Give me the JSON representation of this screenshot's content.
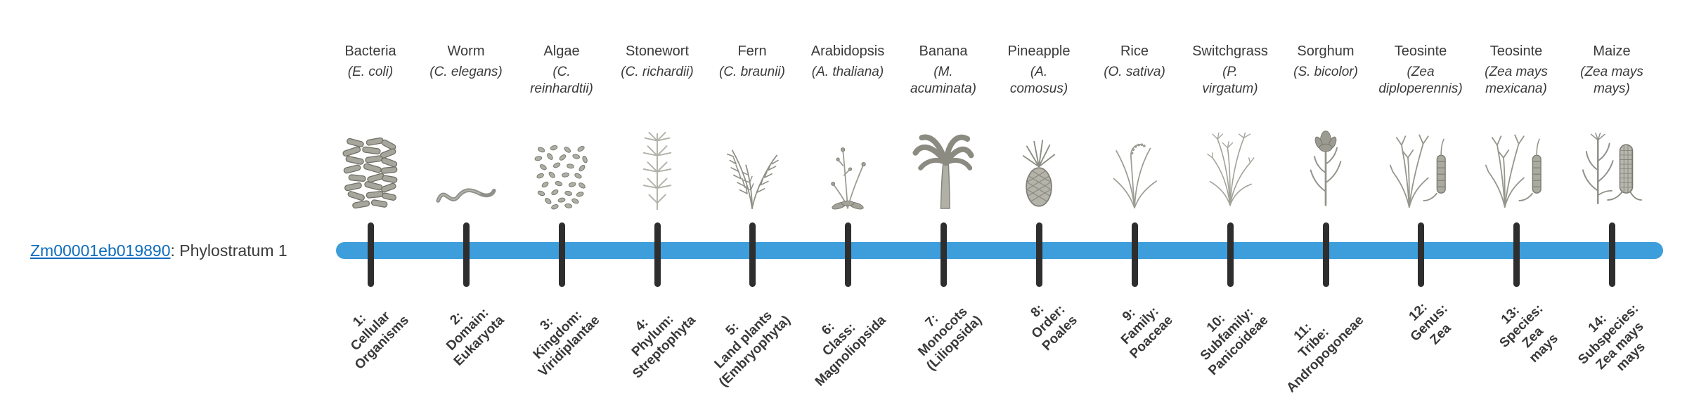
{
  "page": {
    "background": "#ffffff"
  },
  "gene": {
    "id": "Zm00001eb019890",
    "suffix": ": Phylostratum 1"
  },
  "colors": {
    "bar": "#3d9edb",
    "tick": "#2e2e2e",
    "link": "#0f6cbd",
    "text": "#3a3a3a"
  },
  "organisms": [
    {
      "name": "Bacteria",
      "latin": "(E. coli)",
      "icon": "bacteria-icon",
      "stratum": "1:\nCellular\nOrganisms"
    },
    {
      "name": "Worm",
      "latin": "(C. elegans)",
      "icon": "worm-icon",
      "stratum": "2:\nDomain:\nEukaryota"
    },
    {
      "name": "Algae",
      "latin": "(C.\nreinhardtii)",
      "icon": "algae-icon",
      "stratum": "3:\nKingdom:\nViridiplantae"
    },
    {
      "name": "Stonewort",
      "latin": "(C. richardii)",
      "icon": "stonewort-icon",
      "stratum": "4:\nPhylum:\nStreptophyta"
    },
    {
      "name": "Fern",
      "latin": "(C. braunii)",
      "icon": "fern-icon",
      "stratum": "5:\nLand plants\n(Embryophyta)"
    },
    {
      "name": "Arabidopsis",
      "latin": "(A. thaliana)",
      "icon": "arabidopsis-icon",
      "stratum": "6:\nClass:\nMagnoliopsida"
    },
    {
      "name": "Banana",
      "latin": "(M.\nacuminata)",
      "icon": "banana-icon",
      "stratum": "7:\nMonocots\n(Liliopsida)"
    },
    {
      "name": "Pineapple",
      "latin": "(A.\ncomosus)",
      "icon": "pineapple-icon",
      "stratum": "8:\nOrder:\nPoales"
    },
    {
      "name": "Rice",
      "latin": "(O. sativa)",
      "icon": "rice-icon",
      "stratum": "9:\nFamily:\nPoaceae"
    },
    {
      "name": "Switchgrass",
      "latin": "(P.\nvirgatum)",
      "icon": "switchgrass-icon",
      "stratum": "10:\nSubfamily:\nPanicoideae"
    },
    {
      "name": "Sorghum",
      "latin": "(S. bicolor)",
      "icon": "sorghum-icon",
      "stratum": "11:\nTribe:\nAndropogoneae"
    },
    {
      "name": "Teosinte",
      "latin": "(Zea\ndiploperennis)",
      "icon": "teosinte-diploperennis-icon",
      "stratum": "12:\nGenus:\nZea"
    },
    {
      "name": "Teosinte",
      "latin": "(Zea mays\nmexicana)",
      "icon": "teosinte-mexicana-icon",
      "stratum": "13:\nSpecies:\nZea\nmays"
    },
    {
      "name": "Maize",
      "latin": "(Zea mays\nmays)",
      "icon": "maize-icon",
      "stratum": "14:\nSubspecies:\nZea mays\nmays"
    }
  ],
  "chart_data": {
    "type": "bar",
    "orientation": "horizontal",
    "row_label": "Zm00001eb019890: Phylostratum 1",
    "gene_id": "Zm00001eb019890",
    "assigned_phylostratum": 1,
    "bar_span_phylostrata": [
      1,
      14
    ],
    "bar_color": "#3d9edb",
    "categories": [
      "1: Cellular Organisms",
      "2: Domain: Eukaryota",
      "3: Kingdom: Viridiplantae",
      "4: Phylum: Streptophyta",
      "5: Land plants (Embryophyta)",
      "6: Class: Magnoliopsida",
      "7: Monocots (Liliopsida)",
      "8: Order: Poales",
      "9: Family: Poaceae",
      "10: Subfamily: Panicoideae",
      "11: Tribe: Andropogoneae",
      "12: Genus: Zea",
      "13: Species: Zea mays",
      "14: Subspecies: Zea mays mays"
    ],
    "organisms": [
      "Bacteria (E. coli)",
      "Worm (C. elegans)",
      "Algae (C. reinhardtii)",
      "Stonewort (C. richardii)",
      "Fern (C. braunii)",
      "Arabidopsis (A. thaliana)",
      "Banana (M. acuminata)",
      "Pineapple (A. comosus)",
      "Rice (O. sativa)",
      "Switchgrass (P. virgatum)",
      "Sorghum (S. bicolor)",
      "Teosinte (Zea diploperennis)",
      "Teosinte (Zea mays mexicana)",
      "Maize (Zea mays mays)"
    ],
    "legend_position": "none",
    "grid": false
  }
}
